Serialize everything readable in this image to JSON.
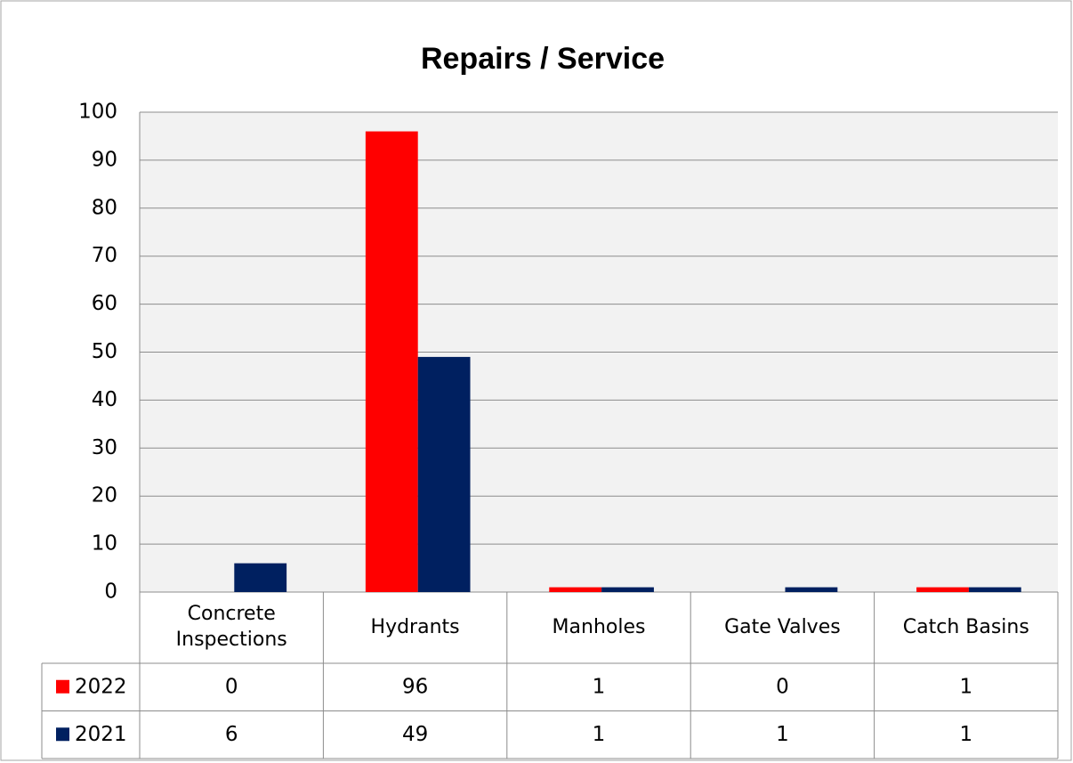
{
  "chart_data": {
    "type": "bar",
    "title": "Repairs / Service",
    "categories": [
      "Concrete Inspections",
      "Hydrants",
      "Manholes",
      "Gate Valves",
      "Catch Basins"
    ],
    "series": [
      {
        "name": "2022",
        "color": "#ff0000",
        "values": [
          0,
          96,
          1,
          0,
          1
        ]
      },
      {
        "name": "2021",
        "color": "#002060",
        "values": [
          6,
          49,
          1,
          1,
          1
        ]
      }
    ],
    "ylim": [
      0,
      100
    ],
    "yticks": [
      0,
      10,
      20,
      30,
      40,
      50,
      60,
      70,
      80,
      90,
      100
    ],
    "grid": true,
    "data_table": true
  }
}
